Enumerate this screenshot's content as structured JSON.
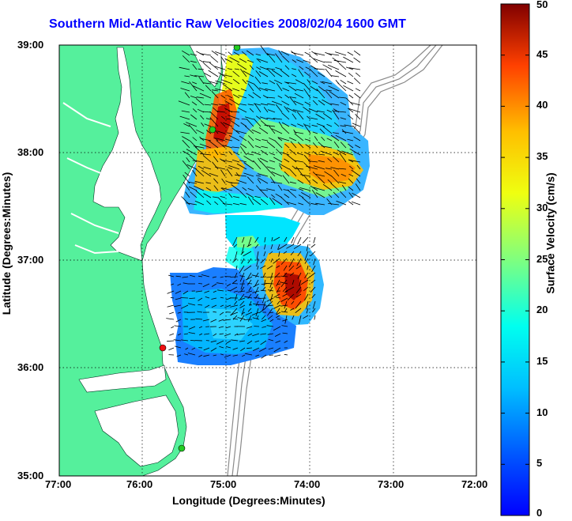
{
  "title": "Southern Mid-Atlantic Raw Velocities 2008/02/04 1600 GMT",
  "axes": {
    "xlabel": "Longitude (Degrees:Minutes)",
    "ylabel": "Latitude (Degrees:Minutes)",
    "xticks": [
      "77:00",
      "76:00",
      "75:00",
      "74:00",
      "73:00",
      "72:00"
    ],
    "yticks": [
      "39:00",
      "38:00",
      "37:00",
      "36:00",
      "35:00"
    ]
  },
  "colorbar": {
    "label": "Surface Velocity (cm/s)",
    "ticks": [
      "50",
      "45",
      "40",
      "35",
      "30",
      "25",
      "20",
      "15",
      "10",
      "5",
      "0"
    ],
    "range": [
      0,
      50
    ]
  },
  "colors": {
    "land": "#55f09c",
    "title": "#0000ff",
    "station_green": "#22cc22",
    "station_red": "#ee1111"
  }
}
